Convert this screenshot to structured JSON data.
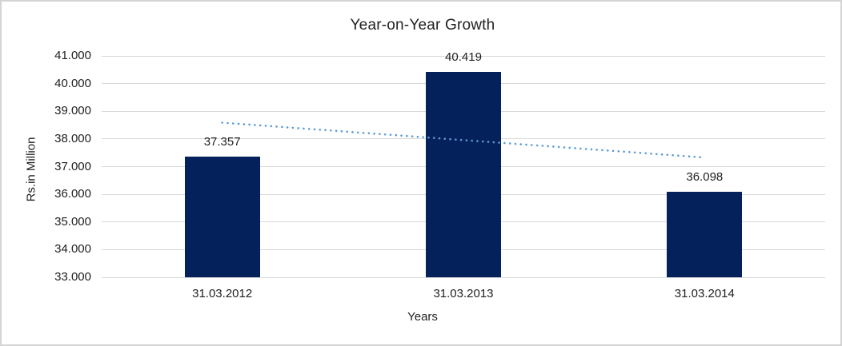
{
  "chart_data": {
    "type": "bar",
    "title": "Year-on-Year Growth",
    "xlabel": "Years",
    "ylabel": "Rs.in Million",
    "categories": [
      "31.03.2012",
      "31.03.2013",
      "31.03.2014"
    ],
    "series": [
      {
        "name": "Rs.in Million",
        "values": [
          37.357,
          40.419,
          36.098
        ],
        "value_labels": [
          "37.357",
          "40.419",
          "36.098"
        ]
      }
    ],
    "ylim": [
      33,
      41
    ],
    "ytick_step": 1,
    "ytick_labels": [
      "33.000",
      "34.000",
      "35.000",
      "36.000",
      "37.000",
      "38.000",
      "39.000",
      "40.000",
      "41.000"
    ],
    "grid": true,
    "legend": "none",
    "trendline": {
      "type": "linear",
      "style": "dotted",
      "start_value": 38.588,
      "end_value": 37.328
    },
    "colors": {
      "bar": "#05215c",
      "trendline": "#5b9bd5",
      "gridline": "#d9d9d9",
      "text": "#1f1f1f",
      "frame_border": "#d4d4d4",
      "background": "#ffffff"
    }
  }
}
